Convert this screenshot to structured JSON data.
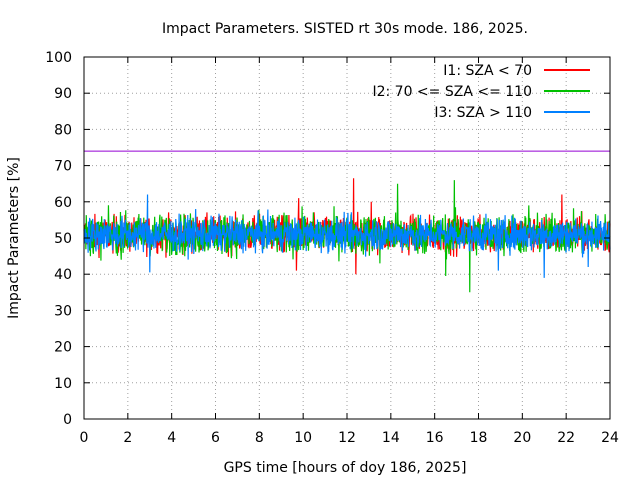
{
  "chart_data": {
    "type": "line",
    "title": "Impact Parameters. SISTED rt 30s mode. 186, 2025.",
    "xlabel": "GPS time [hours of doy 186, 2025]",
    "ylabel": "Impact Parameters [%]",
    "xlim": [
      0,
      24
    ],
    "ylim": [
      0,
      100
    ],
    "xticks": [
      0,
      2,
      4,
      6,
      8,
      10,
      12,
      14,
      16,
      18,
      20,
      22,
      24
    ],
    "yticks": [
      0,
      10,
      20,
      30,
      40,
      50,
      60,
      70,
      80,
      90,
      100
    ],
    "grid": true,
    "legend_position": "top-right",
    "reference_line": {
      "y": 74,
      "color": "#9400d3"
    },
    "series": [
      {
        "name": "I1: SZA < 70",
        "color": "#ff0000",
        "center": 51,
        "spread": 4.5,
        "spikes": [
          {
            "x": 9.8,
            "y": 61
          },
          {
            "x": 12.3,
            "y": 66.5
          },
          {
            "x": 13.1,
            "y": 60
          },
          {
            "x": 21.8,
            "y": 62
          },
          {
            "x": 9.7,
            "y": 41
          },
          {
            "x": 12.4,
            "y": 40
          }
        ]
      },
      {
        "name": "I2: 70 <= SZA <= 110",
        "color": "#00c000",
        "center": 51,
        "spread": 5,
        "spikes": [
          {
            "x": 14.3,
            "y": 65
          },
          {
            "x": 16.9,
            "y": 66
          },
          {
            "x": 17.6,
            "y": 35
          },
          {
            "x": 16.5,
            "y": 39.5
          },
          {
            "x": 20.3,
            "y": 59
          },
          {
            "x": 13.5,
            "y": 43
          }
        ]
      },
      {
        "name": "I3: SZA > 110",
        "color": "#0080ff",
        "center": 51,
        "spread": 4.2,
        "spikes": [
          {
            "x": 2.9,
            "y": 62
          },
          {
            "x": 3.0,
            "y": 40.5
          },
          {
            "x": 18.9,
            "y": 41
          },
          {
            "x": 21.0,
            "y": 39
          },
          {
            "x": 23.0,
            "y": 42
          },
          {
            "x": 5.1,
            "y": 58
          }
        ]
      }
    ]
  }
}
